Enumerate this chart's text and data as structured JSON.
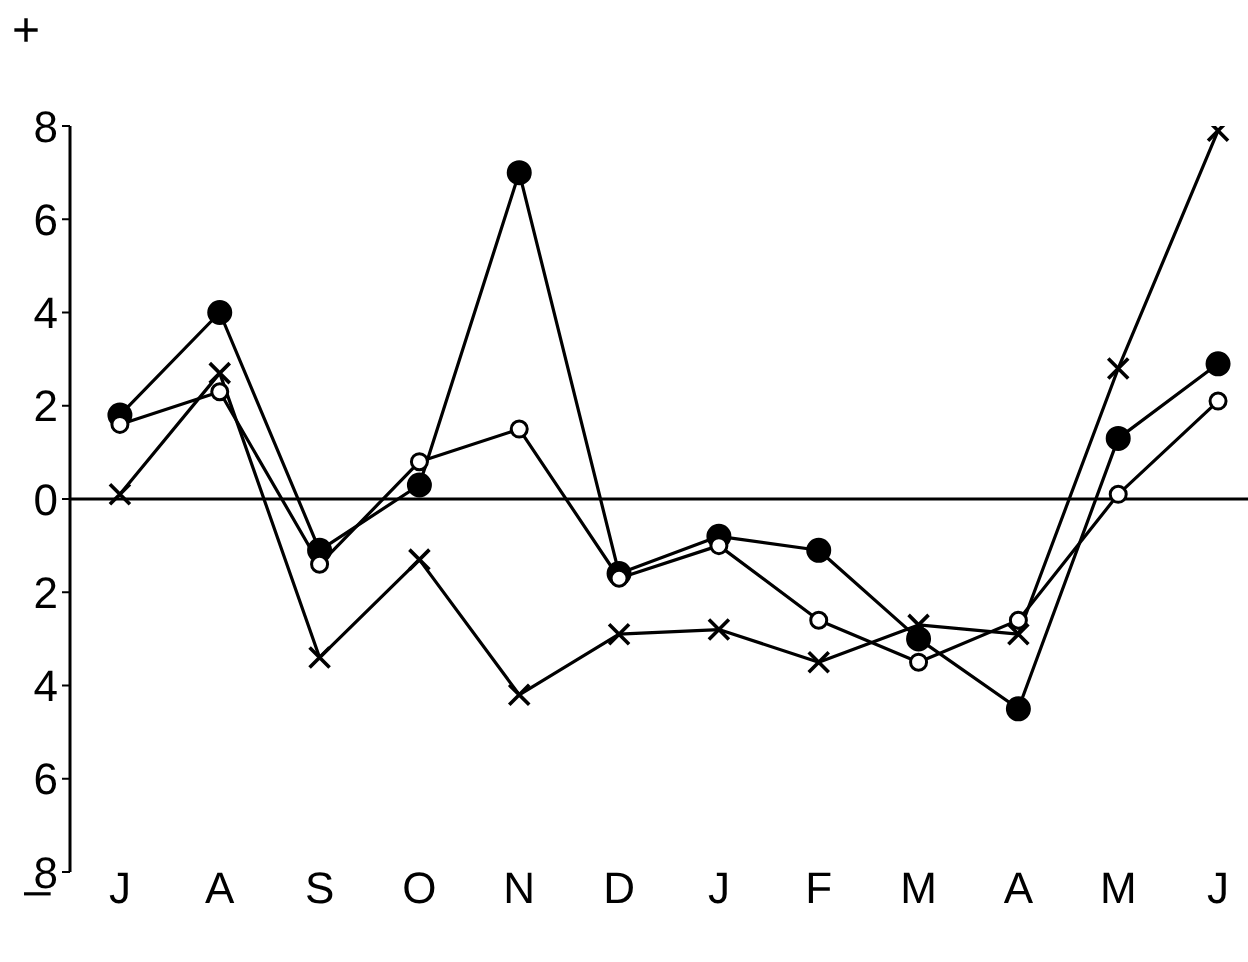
{
  "chart_data": {
    "type": "line",
    "categories": [
      "J",
      "A",
      "S",
      "O",
      "N",
      "D",
      "J",
      "F",
      "M",
      "A",
      "M",
      "J"
    ],
    "series": [
      {
        "color": "#000000",
        "marker": "circle",
        "values": [
          1.8,
          4.0,
          -1.1,
          0.3,
          7.0,
          -1.6,
          -0.8,
          -1.1,
          -3.0,
          -4.5,
          1.3,
          2.9
        ]
      },
      {
        "color": "#000000",
        "marker": "circle-open",
        "values": [
          1.6,
          2.3,
          -1.4,
          0.8,
          1.5,
          -1.7,
          -1.0,
          -2.6,
          -3.5,
          -2.6,
          0.1,
          2.1
        ]
      },
      {
        "color": "#000000",
        "marker": "cross",
        "values": [
          0.1,
          2.7,
          -3.4,
          -1.3,
          -4.2,
          -2.9,
          -2.8,
          -3.5,
          -2.7,
          -2.9,
          2.8,
          7.9
        ]
      }
    ],
    "ylim": [
      -8,
      8
    ],
    "yticks": [
      {
        "value": -8,
        "label": "8"
      },
      {
        "value": -6,
        "label": "6"
      },
      {
        "value": -4,
        "label": "4"
      },
      {
        "value": -2,
        "label": "2"
      },
      0,
      2,
      4,
      6,
      8
    ],
    "ref_lines": [
      {
        "axis": "y",
        "value": 0,
        "color": "#000000"
      }
    ],
    "annotations": [
      "+",
      "–"
    ],
    "grid": false,
    "legend": false,
    "line_style": "solid"
  }
}
